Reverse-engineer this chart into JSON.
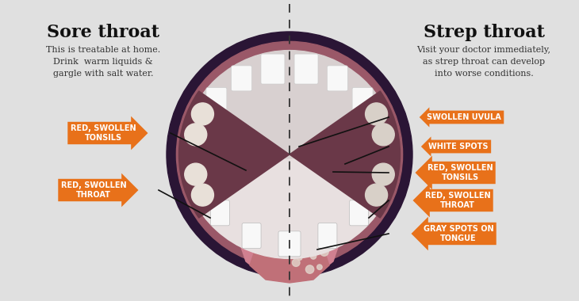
{
  "bg_color": "#e0e0e0",
  "title_left": "Sore throat",
  "title_right": "Strep throat",
  "subtitle_left": "This is treatable at home.\nDrink  warm liquids &\ngargle with salt water.",
  "subtitle_right": "Visit your doctor immediately,\nas strep throat can develop\ninto worse conditions.",
  "orange": "#E8711A",
  "dashed_color": "#333333",
  "mouth_outer": "#2a1535",
  "mouth_gum_upper": "#8c5070",
  "mouth_gum_lower": "#c07890",
  "throat_back": "#7a2030",
  "throat_dark": "#5a1020",
  "uvula_color": "#c03040",
  "tonsil_color": "#b02030",
  "tongue_color": "#d08090",
  "tongue_tip": "#c07080",
  "tooth_color": "#f8f8f8",
  "tooth_shadow": "#d8d0d0",
  "label_font_size": 7.0,
  "title_font_size": 16,
  "subtitle_font_size": 8.0
}
